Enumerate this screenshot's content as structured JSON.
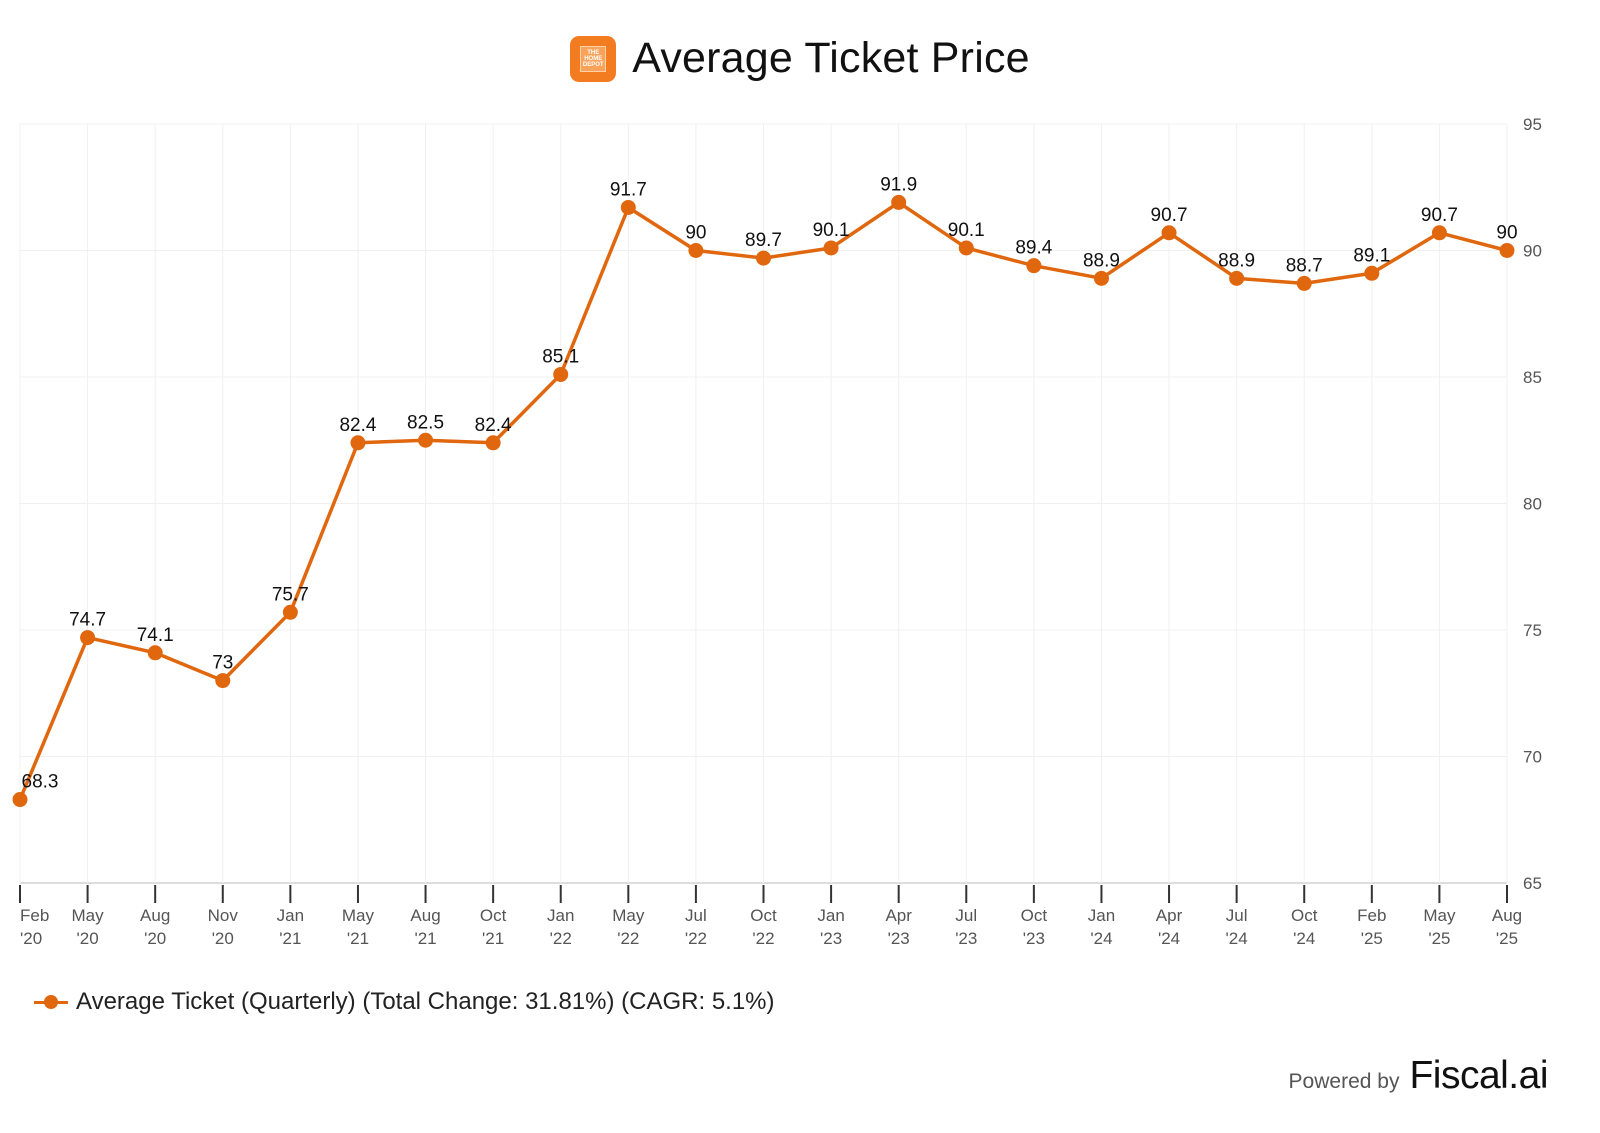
{
  "header": {
    "title": "Average Ticket Price",
    "logo_icon": "home-depot-logo",
    "logo_text": "THE HOME DEPOT"
  },
  "colors": {
    "series": "#e0670e",
    "grid": "#f0f0f0",
    "axis_text": "#555555",
    "label_text": "#111111"
  },
  "legend": {
    "label": "Average Ticket (Quarterly) (Total Change: 31.81%) (CAGR: 5.1%)"
  },
  "footer": {
    "powered_by": "Powered by",
    "brand": "Fiscal.ai"
  },
  "chart_data": {
    "type": "line",
    "title": "Average Ticket Price",
    "xlabel": "",
    "ylabel": "",
    "y_axis_side": "right",
    "ylim": [
      65,
      95
    ],
    "yticks": [
      65,
      70,
      75,
      80,
      85,
      90,
      95
    ],
    "grid": true,
    "legend_position": "bottom-left",
    "categories": [
      [
        "Feb",
        "'20"
      ],
      [
        "May",
        "'20"
      ],
      [
        "Aug",
        "'20"
      ],
      [
        "Nov",
        "'20"
      ],
      [
        "Jan",
        "'21"
      ],
      [
        "May",
        "'21"
      ],
      [
        "Aug",
        "'21"
      ],
      [
        "Oct",
        "'21"
      ],
      [
        "Jan",
        "'22"
      ],
      [
        "May",
        "'22"
      ],
      [
        "Jul",
        "'22"
      ],
      [
        "Oct",
        "'22"
      ],
      [
        "Jan",
        "'23"
      ],
      [
        "Apr",
        "'23"
      ],
      [
        "Jul",
        "'23"
      ],
      [
        "Oct",
        "'23"
      ],
      [
        "Jan",
        "'24"
      ],
      [
        "Apr",
        "'24"
      ],
      [
        "Jul",
        "'24"
      ],
      [
        "Oct",
        "'24"
      ],
      [
        "Feb",
        "'25"
      ],
      [
        "May",
        "'25"
      ],
      [
        "Aug",
        "'25"
      ]
    ],
    "series": [
      {
        "name": "Average Ticket (Quarterly)",
        "values": [
          68.3,
          74.7,
          74.1,
          73,
          75.7,
          82.4,
          82.5,
          82.4,
          85.1,
          91.7,
          90,
          89.7,
          90.1,
          91.9,
          90.1,
          89.4,
          88.9,
          90.7,
          88.9,
          88.7,
          89.1,
          90.7,
          90
        ],
        "labels": [
          "68.3",
          "74.7",
          "74.1",
          "73",
          "75.7",
          "82.4",
          "82.5",
          "82.4",
          "85.1",
          "91.7",
          "90",
          "89.7",
          "90.1",
          "91.9",
          "90.1",
          "89.4",
          "88.9",
          "90.7",
          "88.9",
          "88.7",
          "89.1",
          "90.7",
          "90"
        ]
      }
    ]
  }
}
